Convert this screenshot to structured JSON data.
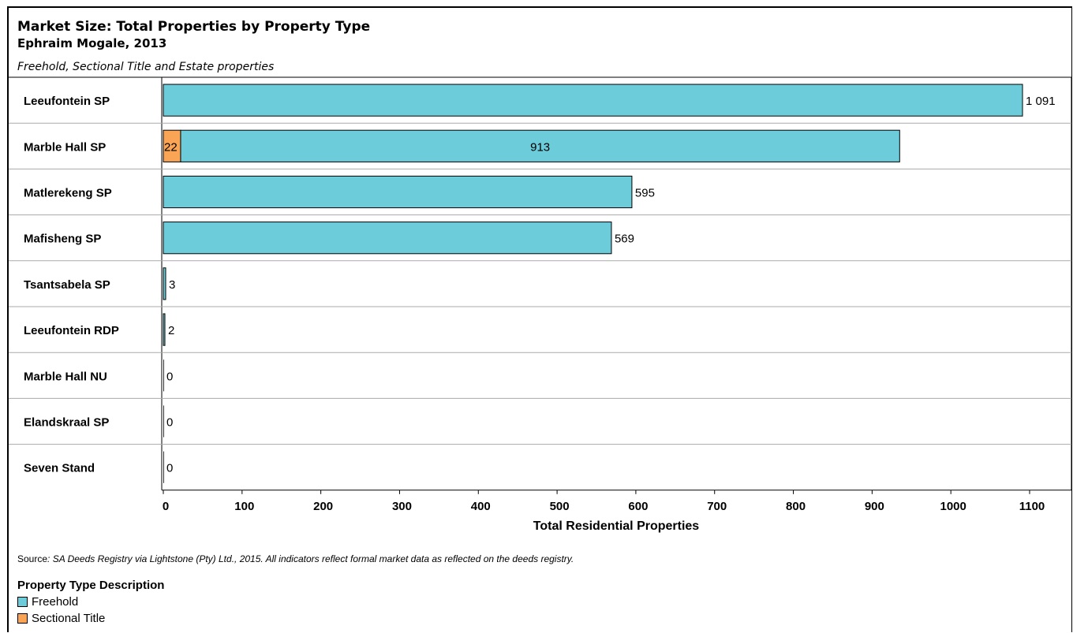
{
  "header": {
    "title": "Market Size: Total Properties by Property Type",
    "subtitle": "Ephraim Mogale, 2013",
    "description": "Freehold, Sectional Title and Estate properties"
  },
  "footer": {
    "source_label": "Source",
    "source_text": ": SA Deeds Registry via Lightstone (Pty) Ltd., 2015. All indicators reflect formal market data as reflected on the deeds registry."
  },
  "legend": {
    "title": "Property Type Description",
    "items": [
      {
        "label": "Freehold",
        "color": "#6CCCDA"
      },
      {
        "label": "Sectional Title",
        "color": "#F9A555"
      }
    ]
  },
  "chart_data": {
    "type": "bar",
    "orientation": "horizontal",
    "stacked": true,
    "categories": [
      "Leeufontein SP",
      "Marble Hall SP",
      "Matlerekeng SP",
      "Mafisheng SP",
      "Tsantsabela SP",
      "Leeufontein RDP",
      "Marble Hall NU",
      "Elandskraal SP",
      "Seven Stand"
    ],
    "series": [
      {
        "name": "Sectional Title",
        "color": "#F9A555",
        "values": [
          0,
          22,
          0,
          0,
          0,
          0,
          0,
          0,
          0
        ]
      },
      {
        "name": "Freehold",
        "color": "#6CCCDA",
        "values": [
          1091,
          913,
          595,
          569,
          3,
          2,
          0,
          0,
          0
        ]
      }
    ],
    "data_labels": [
      {
        "category": "Leeufontein SP",
        "series": "Freehold",
        "text": "1 091"
      },
      {
        "category": "Marble Hall SP",
        "series": "Sectional Title",
        "text": "22"
      },
      {
        "category": "Marble Hall SP",
        "series": "Freehold",
        "text": "913"
      },
      {
        "category": "Matlerekeng SP",
        "series": "Freehold",
        "text": "595"
      },
      {
        "category": "Mafisheng SP",
        "series": "Freehold",
        "text": "569"
      },
      {
        "category": "Tsantsabela SP",
        "series": "Freehold",
        "text": "3"
      },
      {
        "category": "Leeufontein RDP",
        "series": "Freehold",
        "text": "2"
      },
      {
        "category": "Marble Hall NU",
        "series": "Freehold",
        "text": "0"
      },
      {
        "category": "Elandskraal SP",
        "series": "Freehold",
        "text": "0"
      },
      {
        "category": "Seven Stand",
        "series": "Freehold",
        "text": "0"
      }
    ],
    "xlabel": "Total Residential Properties",
    "ylabel": "",
    "xlim": [
      0,
      1100
    ],
    "xticks": [
      0,
      100,
      200,
      300,
      400,
      500,
      600,
      700,
      800,
      900,
      1000,
      1100
    ],
    "grid": "horizontal row separators"
  }
}
